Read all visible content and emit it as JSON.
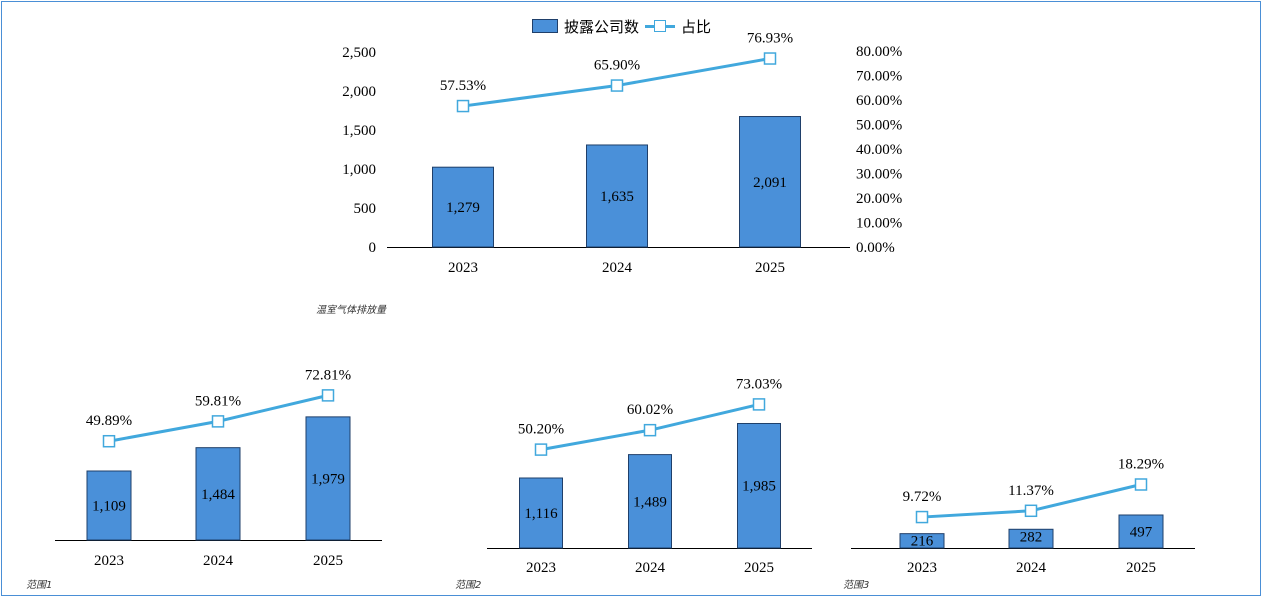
{
  "legend": {
    "bar_label": "披露公司数",
    "line_label": "占比"
  },
  "chart_data": [
    {
      "type": "bar",
      "caption": "温室气体排放量",
      "categories": [
        "2023",
        "2024",
        "2025"
      ],
      "series": [
        {
          "name": "披露公司数",
          "kind": "bar",
          "values": [
            1279,
            1635,
            2091
          ],
          "labels": [
            "1,279",
            "1,635",
            "2,091"
          ],
          "color": "#4a90d9"
        },
        {
          "name": "占比",
          "kind": "line",
          "values": [
            57.53,
            65.9,
            76.93
          ],
          "labels": [
            "57.53%",
            "65.90%",
            "76.93%"
          ],
          "color": "#41a8dd"
        }
      ],
      "y_left": {
        "min": 0,
        "max": 2500,
        "ticks": [
          "0",
          "500",
          "1,000",
          "1,500",
          "2,000",
          "2,500"
        ]
      },
      "y_right": {
        "min": 0,
        "max": 80,
        "ticks": [
          "0.00%",
          "10.00%",
          "20.00%",
          "30.00%",
          "40.00%",
          "50.00%",
          "60.00%",
          "70.00%",
          "80.00%"
        ]
      }
    },
    {
      "type": "bar",
      "caption": "范围1",
      "categories": [
        "2023",
        "2024",
        "2025"
      ],
      "series": [
        {
          "name": "披露公司数",
          "kind": "bar",
          "values": [
            1109,
            1484,
            1979
          ],
          "labels": [
            "1,109",
            "1,484",
            "1,979"
          ],
          "color": "#4a90d9"
        },
        {
          "name": "占比",
          "kind": "line",
          "values": [
            49.89,
            59.81,
            72.81
          ],
          "labels": [
            "49.89%",
            "59.81%",
            "72.81%"
          ],
          "color": "#41a8dd"
        }
      ]
    },
    {
      "type": "bar",
      "caption": "范围2",
      "categories": [
        "2023",
        "2024",
        "2025"
      ],
      "series": [
        {
          "name": "披露公司数",
          "kind": "bar",
          "values": [
            1116,
            1489,
            1985
          ],
          "labels": [
            "1,116",
            "1,489",
            "1,985"
          ],
          "color": "#4a90d9"
        },
        {
          "name": "占比",
          "kind": "line",
          "values": [
            50.2,
            60.02,
            73.03
          ],
          "labels": [
            "50.20%",
            "60.02%",
            "73.03%"
          ],
          "color": "#41a8dd"
        }
      ]
    },
    {
      "type": "bar",
      "caption": "范围3",
      "categories": [
        "2023",
        "2024",
        "2025"
      ],
      "series": [
        {
          "name": "披露公司数",
          "kind": "bar",
          "values": [
            216,
            282,
            497
          ],
          "labels": [
            "216",
            "282",
            "497"
          ],
          "color": "#4a90d9"
        },
        {
          "name": "占比",
          "kind": "line",
          "values": [
            9.72,
            11.37,
            18.29
          ],
          "labels": [
            "9.72%",
            "11.37%",
            "18.29%"
          ],
          "color": "#41a8dd"
        }
      ]
    }
  ]
}
